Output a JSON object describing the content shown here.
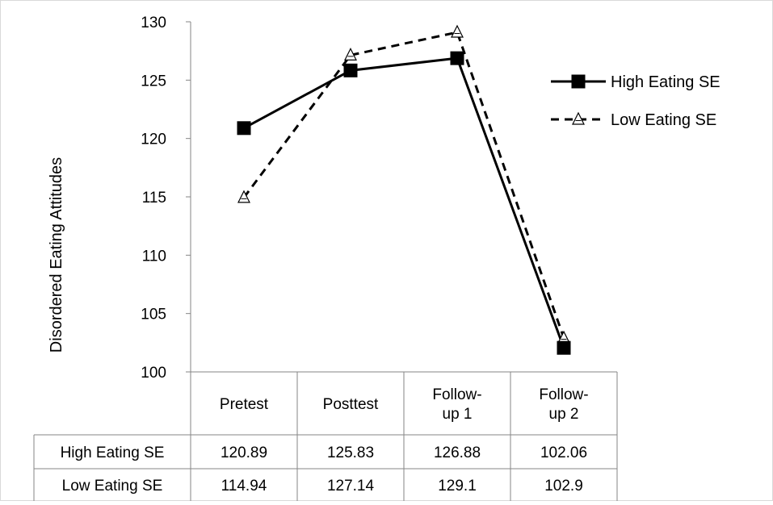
{
  "chart_data": {
    "type": "line",
    "title": "",
    "xlabel": "",
    "ylabel": "Disordered Eating Attitudes",
    "ylim": [
      100,
      130
    ],
    "yticks": [
      100,
      105,
      110,
      115,
      120,
      125,
      130
    ],
    "grid": false,
    "legend_position": "right",
    "categories": [
      "Pretest",
      "Posttest",
      "Follow-up 1",
      "Follow-up 2"
    ],
    "category_lines": [
      [
        "Pretest"
      ],
      [
        "Posttest"
      ],
      [
        "Follow-",
        "up 1"
      ],
      [
        "Follow-",
        "up 2"
      ]
    ],
    "series": [
      {
        "name": "High Eating SE",
        "values": [
          120.89,
          125.83,
          126.88,
          102.06
        ],
        "display": [
          "120.89",
          "125.83",
          "126.88",
          "102.06"
        ],
        "line_style": "solid",
        "marker": "filled-square",
        "color": "#000000"
      },
      {
        "name": "Low Eating SE",
        "values": [
          114.94,
          127.14,
          129.1,
          102.9
        ],
        "display": [
          "114.94",
          "127.14",
          "129.1",
          "102.9"
        ],
        "line_style": "dashed",
        "marker": "open-triangle",
        "color": "#000000"
      }
    ],
    "data_table": true
  }
}
